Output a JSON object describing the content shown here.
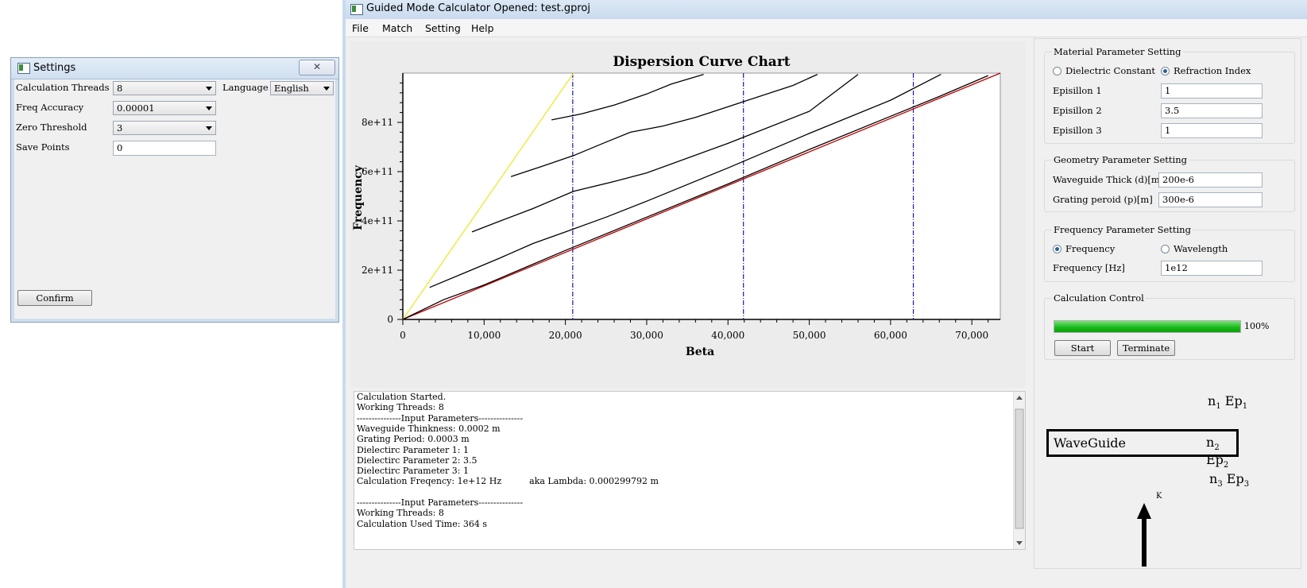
{
  "settings_window": {
    "title": "Settings",
    "close_symbol": "✕",
    "calc_threads_label": "Calculation Threads",
    "calc_threads_value": "8",
    "language_label": "Language",
    "language_value": "English",
    "freq_accuracy_label": "Freq Accuracy",
    "freq_accuracy_value": "0.00001",
    "zero_threshold_label": "Zero Threshold",
    "zero_threshold_value": "3",
    "save_points_label": "Save Points",
    "save_points_value": "0",
    "confirm_label": "Confirm"
  },
  "main_window": {
    "title": "Guided Mode Calculator Opened: test.gproj",
    "menu": [
      "File",
      "Match",
      "Setting",
      "Help"
    ]
  },
  "chart_data": {
    "type": "line",
    "title": "Dispersion Curve Chart",
    "xlabel": "Beta",
    "ylabel": "Frequency",
    "xlim": [
      0,
      73500
    ],
    "ylim": [
      0,
      1000000000000.0
    ],
    "xticks": [
      "0",
      "10,000",
      "20,000",
      "30,000",
      "40,000",
      "50,000",
      "60,000",
      "70,000"
    ],
    "yticks": [
      "0",
      "2e+11",
      "4e+11",
      "6e+11",
      "8e+11"
    ],
    "vertical_lines_x": [
      20900,
      41900,
      62800
    ],
    "series": [
      {
        "color": "#f0e62e",
        "points": [
          [
            0,
            0
          ],
          [
            21000,
            1000000000000.0
          ]
        ]
      },
      {
        "color": "#c00000",
        "points": [
          [
            0,
            0
          ],
          [
            73500,
            1000000000000.0
          ]
        ]
      },
      {
        "color": "#000000",
        "points": [
          [
            0,
            0
          ],
          [
            5000,
            80000000000.0
          ],
          [
            10000,
            140000000000.0
          ],
          [
            15000,
            210000000000.0
          ],
          [
            20000,
            280000000000.0
          ],
          [
            30000,
            415000000000.0
          ],
          [
            40000,
            550000000000.0
          ],
          [
            50000,
            690000000000.0
          ],
          [
            60000,
            825000000000.0
          ],
          [
            66000,
            905000000000.0
          ],
          [
            72000,
            990000000000.0
          ]
        ]
      },
      {
        "color": "#000000",
        "points": [
          [
            3300,
            130000000000.0
          ],
          [
            8000,
            195000000000.0
          ],
          [
            12000,
            250000000000.0
          ],
          [
            16000,
            308000000000.0
          ],
          [
            20000,
            355000000000.0
          ],
          [
            25000,
            415000000000.0
          ],
          [
            30000,
            480000000000.0
          ],
          [
            40000,
            615000000000.0
          ],
          [
            50000,
            755000000000.0
          ],
          [
            60000,
            890000000000.0
          ],
          [
            66200,
            995000000000.0
          ]
        ]
      },
      {
        "color": "#000000",
        "points": [
          [
            8500,
            355000000000.0
          ],
          [
            12000,
            400000000000.0
          ],
          [
            16000,
            450000000000.0
          ],
          [
            21000,
            520000000000.0
          ],
          [
            26000,
            560000000000.0
          ],
          [
            30000,
            595000000000.0
          ],
          [
            40000,
            715000000000.0
          ],
          [
            50000,
            845000000000.0
          ],
          [
            56000,
            995000000000.0
          ]
        ]
      },
      {
        "color": "#000000",
        "points": [
          [
            13300,
            580000000000.0
          ],
          [
            17000,
            620000000000.0
          ],
          [
            21000,
            665000000000.0
          ],
          [
            25000,
            720000000000.0
          ],
          [
            28000,
            760000000000.0
          ],
          [
            32000,
            785000000000.0
          ],
          [
            36000,
            820000000000.0
          ],
          [
            42000,
            885000000000.0
          ],
          [
            48000,
            950000000000.0
          ],
          [
            51000,
            995000000000.0
          ]
        ]
      },
      {
        "color": "#000000",
        "points": [
          [
            18300,
            810000000000.0
          ],
          [
            22000,
            835000000000.0
          ],
          [
            26000,
            870000000000.0
          ],
          [
            30000,
            915000000000.0
          ],
          [
            33000,
            955000000000.0
          ],
          [
            37000,
            995000000000.0
          ]
        ]
      }
    ]
  },
  "log": [
    "Calculation Started.",
    "Working Threads: 8",
    "---------------Input Parameters---------------",
    "Waveguide Thinkness: 0.0002 m",
    "Grating Period: 0.0003 m",
    "Dielectirc Parameter 1: 1",
    "Dielectirc Parameter 2: 3.5",
    "Dielectirc Parameter 3: 1",
    "Calculation Freqency: 1e+12 Hz          aka Lambda: 0.000299792 m",
    "",
    "---------------Input Parameters---------------",
    "Working Threads: 8",
    "Calculation Used Time: 364 s"
  ],
  "material": {
    "title": "Material Parameter Setting",
    "radio_dielectric": "Dielectric Constant",
    "radio_refraction": "Refraction Index",
    "selected": "Refraction Index",
    "eps1_label": "Episillon 1",
    "eps1_value": "1",
    "eps2_label": "Episillon 2",
    "eps2_value": "3.5",
    "eps3_label": "Episillon 3",
    "eps3_value": "1"
  },
  "geometry": {
    "title": "Geometry Parameter Setting",
    "thick_label": "Waveguide Thick (d)[m]",
    "thick_value": "200e-6",
    "period_label": "Grating peroid (p)[m]",
    "period_value": "300e-6"
  },
  "frequency": {
    "title": "Frequency Parameter Setting",
    "radio_frequency": "Frequency",
    "radio_wavelength": "Wavelength",
    "selected": "Frequency",
    "freq_label": "Frequency [Hz]",
    "freq_value": "1e12"
  },
  "calc_control": {
    "title": "Calculation Control",
    "progress": 1.0,
    "progress_text": "100%",
    "start_label": "Start",
    "terminate_label": "Terminate"
  },
  "diagram": {
    "label_n1": "n",
    "sub_1": "1",
    "ep": "Ep",
    "label_n2": "n",
    "sub_2": "2",
    "label_n3": "n",
    "sub_3": "3",
    "waveguide": "WaveGuide",
    "k_label": "K"
  }
}
